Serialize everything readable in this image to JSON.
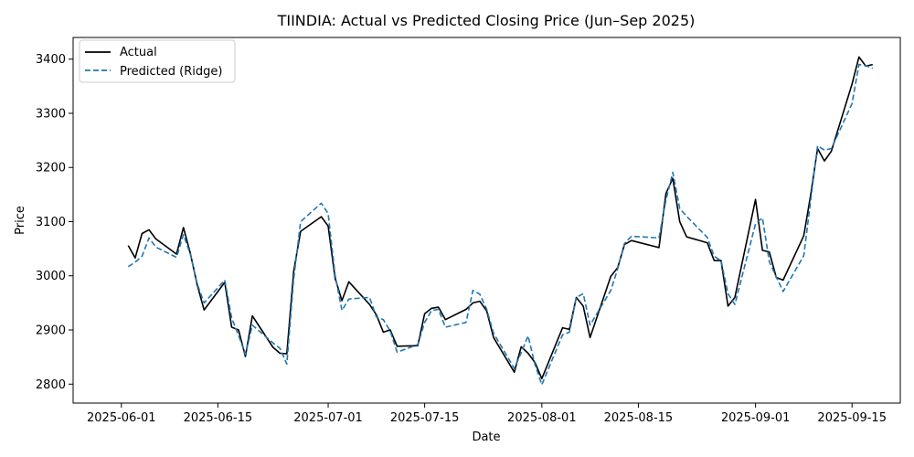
{
  "chart_data": {
    "type": "line",
    "title": "TIINDIA: Actual vs Predicted Closing Price (Jun–Sep 2025)",
    "xlabel": "Date",
    "ylabel": "Price",
    "xlim": [
      "2025-05-25",
      "2025-09-22"
    ],
    "ylim": [
      2765,
      3440
    ],
    "x_ticks": [
      "2025-06-01",
      "2025-06-15",
      "2025-07-01",
      "2025-07-15",
      "2025-08-01",
      "2025-08-15",
      "2025-09-01",
      "2025-09-15"
    ],
    "y_ticks": [
      2800,
      2900,
      3000,
      3100,
      3200,
      3300,
      3400
    ],
    "grid": false,
    "legend_position": "top-left",
    "series": [
      {
        "name": "Actual",
        "color": "#000000",
        "style": "solid",
        "points": [
          [
            "2025-06-02",
            3056
          ],
          [
            "2025-06-03",
            3033
          ],
          [
            "2025-06-04",
            3078
          ],
          [
            "2025-06-05",
            3085
          ],
          [
            "2025-06-06",
            3068
          ],
          [
            "2025-06-09",
            3040
          ],
          [
            "2025-06-10",
            3089
          ],
          [
            "2025-06-11",
            3042
          ],
          [
            "2025-06-12",
            2983
          ],
          [
            "2025-06-13",
            2937
          ],
          [
            "2025-06-16",
            2988
          ],
          [
            "2025-06-17",
            2905
          ],
          [
            "2025-06-18",
            2900
          ],
          [
            "2025-06-19",
            2851
          ],
          [
            "2025-06-20",
            2926
          ],
          [
            "2025-06-23",
            2868
          ],
          [
            "2025-06-24",
            2857
          ],
          [
            "2025-06-25",
            2856
          ],
          [
            "2025-06-26",
            3008
          ],
          [
            "2025-06-27",
            3082
          ],
          [
            "2025-06-30",
            3109
          ],
          [
            "2025-07-01",
            3092
          ],
          [
            "2025-07-02",
            2996
          ],
          [
            "2025-07-03",
            2954
          ],
          [
            "2025-07-04",
            2989
          ],
          [
            "2025-07-07",
            2947
          ],
          [
            "2025-07-08",
            2928
          ],
          [
            "2025-07-09",
            2896
          ],
          [
            "2025-07-10",
            2900
          ],
          [
            "2025-07-11",
            2870
          ],
          [
            "2025-07-14",
            2871
          ],
          [
            "2025-07-15",
            2930
          ],
          [
            "2025-07-16",
            2940
          ],
          [
            "2025-07-17",
            2942
          ],
          [
            "2025-07-18",
            2919
          ],
          [
            "2025-07-21",
            2938
          ],
          [
            "2025-07-22",
            2950
          ],
          [
            "2025-07-23",
            2953
          ],
          [
            "2025-07-24",
            2935
          ],
          [
            "2025-07-25",
            2886
          ],
          [
            "2025-07-28",
            2822
          ],
          [
            "2025-07-29",
            2869
          ],
          [
            "2025-07-30",
            2857
          ],
          [
            "2025-07-31",
            2840
          ],
          [
            "2025-08-01",
            2810
          ],
          [
            "2025-08-04",
            2904
          ],
          [
            "2025-08-05",
            2901
          ],
          [
            "2025-08-06",
            2960
          ],
          [
            "2025-08-07",
            2944
          ],
          [
            "2025-08-08",
            2886
          ],
          [
            "2025-08-11",
            2999
          ],
          [
            "2025-08-12",
            3015
          ],
          [
            "2025-08-13",
            3058
          ],
          [
            "2025-08-14",
            3065
          ],
          [
            "2025-08-18",
            3052
          ],
          [
            "2025-08-19",
            3152
          ],
          [
            "2025-08-20",
            3180
          ],
          [
            "2025-08-21",
            3100
          ],
          [
            "2025-08-22",
            3072
          ],
          [
            "2025-08-25",
            3061
          ],
          [
            "2025-08-26",
            3028
          ],
          [
            "2025-08-27",
            3028
          ],
          [
            "2025-08-28",
            2944
          ],
          [
            "2025-08-29",
            2960
          ],
          [
            "2025-09-01",
            3141
          ],
          [
            "2025-09-02",
            3047
          ],
          [
            "2025-09-03",
            3044
          ],
          [
            "2025-09-04",
            2997
          ],
          [
            "2025-09-05",
            2992
          ],
          [
            "2025-09-08",
            3074
          ],
          [
            "2025-09-09",
            3150
          ],
          [
            "2025-09-10",
            3235
          ],
          [
            "2025-09-11",
            3212
          ],
          [
            "2025-09-12",
            3230
          ],
          [
            "2025-09-15",
            3354
          ],
          [
            "2025-09-16",
            3404
          ],
          [
            "2025-09-17",
            3387
          ],
          [
            "2025-09-18",
            3390
          ]
        ]
      },
      {
        "name": "Predicted (Ridge)",
        "color": "#1f77b4",
        "style": "dashed",
        "points": [
          [
            "2025-06-02",
            3017
          ],
          [
            "2025-06-03",
            3025
          ],
          [
            "2025-06-04",
            3036
          ],
          [
            "2025-06-05",
            3070
          ],
          [
            "2025-06-06",
            3053
          ],
          [
            "2025-06-09",
            3034
          ],
          [
            "2025-06-10",
            3076
          ],
          [
            "2025-06-11",
            3040
          ],
          [
            "2025-06-12",
            2985
          ],
          [
            "2025-06-13",
            2950
          ],
          [
            "2025-06-16",
            2992
          ],
          [
            "2025-06-17",
            2922
          ],
          [
            "2025-06-18",
            2890
          ],
          [
            "2025-06-19",
            2855
          ],
          [
            "2025-06-20",
            2909
          ],
          [
            "2025-06-23",
            2876
          ],
          [
            "2025-06-24",
            2866
          ],
          [
            "2025-06-25",
            2837
          ],
          [
            "2025-06-26",
            2994
          ],
          [
            "2025-06-27",
            3100
          ],
          [
            "2025-06-30",
            3134
          ],
          [
            "2025-07-01",
            3115
          ],
          [
            "2025-07-02",
            3002
          ],
          [
            "2025-07-03",
            2936
          ],
          [
            "2025-07-04",
            2957
          ],
          [
            "2025-07-07",
            2960
          ],
          [
            "2025-07-08",
            2924
          ],
          [
            "2025-07-09",
            2919
          ],
          [
            "2025-07-10",
            2898
          ],
          [
            "2025-07-11",
            2859
          ],
          [
            "2025-07-14",
            2873
          ],
          [
            "2025-07-15",
            2914
          ],
          [
            "2025-07-16",
            2936
          ],
          [
            "2025-07-17",
            2938
          ],
          [
            "2025-07-18",
            2905
          ],
          [
            "2025-07-21",
            2914
          ],
          [
            "2025-07-22",
            2973
          ],
          [
            "2025-07-23",
            2966
          ],
          [
            "2025-07-24",
            2938
          ],
          [
            "2025-07-25",
            2894
          ],
          [
            "2025-07-28",
            2829
          ],
          [
            "2025-07-29",
            2858
          ],
          [
            "2025-07-30",
            2889
          ],
          [
            "2025-07-31",
            2836
          ],
          [
            "2025-08-01",
            2799
          ],
          [
            "2025-08-04",
            2891
          ],
          [
            "2025-08-05",
            2896
          ],
          [
            "2025-08-06",
            2960
          ],
          [
            "2025-08-07",
            2967
          ],
          [
            "2025-08-08",
            2909
          ],
          [
            "2025-08-11",
            2973
          ],
          [
            "2025-08-12",
            3013
          ],
          [
            "2025-08-13",
            3060
          ],
          [
            "2025-08-14",
            3073
          ],
          [
            "2025-08-18",
            3070
          ],
          [
            "2025-08-19",
            3140
          ],
          [
            "2025-08-20",
            3191
          ],
          [
            "2025-08-21",
            3124
          ],
          [
            "2025-08-22",
            3110
          ],
          [
            "2025-08-25",
            3071
          ],
          [
            "2025-08-26",
            3036
          ],
          [
            "2025-08-27",
            3028
          ],
          [
            "2025-08-28",
            2967
          ],
          [
            "2025-08-29",
            2947
          ],
          [
            "2025-09-01",
            3096
          ],
          [
            "2025-09-02",
            3107
          ],
          [
            "2025-09-03",
            3026
          ],
          [
            "2025-09-04",
            2998
          ],
          [
            "2025-09-05",
            2971
          ],
          [
            "2025-09-08",
            3037
          ],
          [
            "2025-09-09",
            3140
          ],
          [
            "2025-09-10",
            3240
          ],
          [
            "2025-09-11",
            3232
          ],
          [
            "2025-09-12",
            3235
          ],
          [
            "2025-09-15",
            3318
          ],
          [
            "2025-09-16",
            3390
          ],
          [
            "2025-09-17",
            3388
          ],
          [
            "2025-09-18",
            3383
          ]
        ]
      }
    ]
  }
}
